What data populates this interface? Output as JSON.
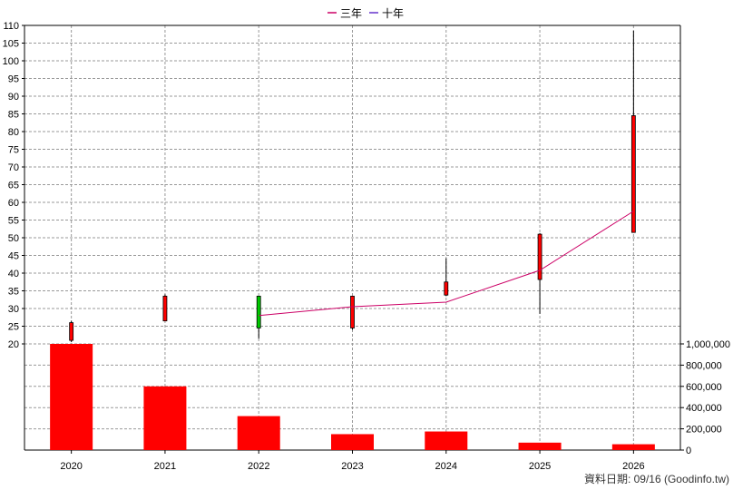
{
  "legend": [
    {
      "label": "三年",
      "color": "#cc0066"
    },
    {
      "label": "十年",
      "color": "#6633cc"
    }
  ],
  "footer": {
    "text": "資料日期: 09/16  (Goodinfo.tw)"
  },
  "colors": {
    "up": "#ff0000",
    "down": "#00cc00",
    "volume": "#ff0000",
    "grid": "#999999",
    "ma_line": "#cc0066"
  },
  "chart_data": {
    "type": "candlestick+bar",
    "categories": [
      "2020",
      "2021",
      "2022",
      "2023",
      "2024",
      "2025",
      "2026"
    ],
    "price_axis": {
      "ylim": [
        20,
        110
      ],
      "ticks": [
        20,
        25,
        30,
        35,
        40,
        45,
        50,
        55,
        60,
        65,
        70,
        75,
        80,
        85,
        90,
        95,
        100,
        105,
        110
      ]
    },
    "volume_axis": {
      "ylim": [
        0,
        1000000
      ],
      "ticks": [
        0,
        200000,
        400000,
        600000,
        800000,
        1000000
      ],
      "tick_labels": [
        "0",
        "200,000",
        "400,000",
        "600,000",
        "800,000",
        "1,000,000"
      ]
    },
    "candles": [
      {
        "year": "2020",
        "open": 21,
        "close": 26,
        "high": 26.5,
        "low": 20.5
      },
      {
        "year": "2021",
        "open": 26.5,
        "close": 33.5,
        "high": 34,
        "low": 26.5
      },
      {
        "year": "2022",
        "open": 33.5,
        "close": 24.5,
        "high": 33.5,
        "low": 21.5
      },
      {
        "year": "2023",
        "open": 24.5,
        "close": 33.5,
        "high": 33.5,
        "low": 24
      },
      {
        "year": "2024",
        "open": 33.8,
        "close": 37.5,
        "high": 44.2,
        "low": 33.5
      },
      {
        "year": "2025",
        "open": 38.2,
        "close": 51,
        "high": 51.3,
        "low": 28.5
      },
      {
        "year": "2026",
        "open": 51.5,
        "close": 84.5,
        "high": 108.5,
        "low": 51.5
      }
    ],
    "volume": [
      1000000,
      600000,
      320000,
      150000,
      175000,
      70000,
      55000
    ],
    "series": [
      {
        "name": "三年",
        "x": [
          "2022",
          "2023",
          "2024",
          "2025",
          "2026"
        ],
        "values": [
          28,
          30.5,
          31.8,
          40.8,
          57.5
        ]
      }
    ]
  }
}
